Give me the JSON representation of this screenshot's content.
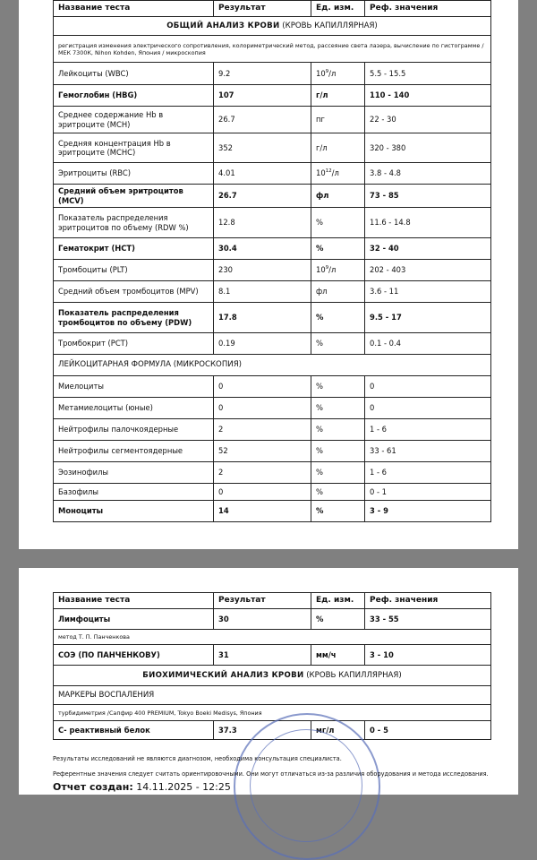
{
  "headers": {
    "name": "Название теста",
    "result": "Результат",
    "unit": "Ед. изм.",
    "ref": "Реф. значения"
  },
  "cbc": {
    "title": "ОБЩИЙ АНАЛИЗ КРОВИ",
    "subtitle": "(КРОВЬ КАПИЛЛЯРНАЯ)",
    "method": "регистрация изменения электрического сопротивления, колориметрический метод, рассеяние света лазера, вычисление по гистограмме / МЕК 7300К, Nihon Kohden, Япония / микроскопия"
  },
  "rows1": [
    {
      "name": "Лейкоциты (WBC)",
      "result": "9.2",
      "unit_base": "10",
      "unit_exp": "9",
      "unit_tail": "/л",
      "ref": "5.5 - 15.5",
      "bold": false
    },
    {
      "name": "Гемоглобин (HBG)",
      "result": "107",
      "unit": "г/л",
      "ref": "110 - 140",
      "bold": true
    },
    {
      "name": "Среднее содержание Hb в эритроците (МСН)",
      "result": "26.7",
      "unit": "пг",
      "ref": "22 - 30",
      "bold": false
    },
    {
      "name": "Средняя концентрация Hb в эритроците (МСНС)",
      "result": "352",
      "unit": "г/л",
      "ref": "320 - 380",
      "bold": false
    },
    {
      "name": "Эритроциты (RBC)",
      "result": "4.01",
      "unit_base": "10",
      "unit_exp": "12",
      "unit_tail": "/л",
      "ref": "3.8 - 4.8",
      "bold": false
    },
    {
      "name": "Средний объем эритроцитов (MCV)",
      "result": "26.7",
      "unit": "фл",
      "ref": "73 - 85",
      "bold": true
    },
    {
      "name": "Показатель распределения эритроцитов по объему (RDW %)",
      "result": "12.8",
      "unit": "%",
      "ref": "11.6 - 14.8",
      "bold": false
    },
    {
      "name": "Гематокрит (НСТ)",
      "result": "30.4",
      "unit": "%",
      "ref": "32 - 40",
      "bold": true
    },
    {
      "name": "Тромбоциты (PLT)",
      "result": "230",
      "unit_base": "10",
      "unit_exp": "9",
      "unit_tail": "/л",
      "ref": "202 - 403",
      "bold": false
    },
    {
      "name": "Средний объем тромбоцитов (MPV)",
      "result": "8.1",
      "unit": "фл",
      "ref": "3.6 - 11",
      "bold": false
    },
    {
      "name": "Показатель распределения тромбоцитов по объему (PDW)",
      "result": "17.8",
      "unit": "%",
      "ref": "9.5 - 17",
      "bold": true
    },
    {
      "name": "Тромбокрит (РСТ)",
      "result": "0.19",
      "unit": "%",
      "ref": "0.1 - 0.4",
      "bold": false
    }
  ],
  "formula_title": "ЛЕЙКОЦИТАРНАЯ ФОРМУЛА (МИКРОСКОПИЯ)",
  "rows2": [
    {
      "name": "Миелоциты",
      "result": "0",
      "unit": "%",
      "ref": "0",
      "bold": false
    },
    {
      "name": "Метамиелоциты (юные)",
      "result": "0",
      "unit": "%",
      "ref": "0",
      "bold": false
    },
    {
      "name": "Нейтрофилы палочкоядерные",
      "result": "2",
      "unit": "%",
      "ref": "1 - 6",
      "bold": false
    },
    {
      "name": "Нейтрофилы сегментоядерные",
      "result": "52",
      "unit": "%",
      "ref": "33 - 61",
      "bold": false
    },
    {
      "name": "Эозинофилы",
      "result": "2",
      "unit": "%",
      "ref": "1 - 6",
      "bold": false
    },
    {
      "name": "Базофилы",
      "result": "0",
      "unit": "%",
      "ref": "0 - 1",
      "bold": false
    },
    {
      "name": "Моноциты",
      "result": "14",
      "unit": "%",
      "ref": "3 - 9",
      "bold": true
    }
  ],
  "page2": {
    "lymph": {
      "name": "Лимфоциты",
      "result": "30",
      "unit": "%",
      "ref": "33 - 55"
    },
    "esr_method": "метод Т. П. Панченкова",
    "esr": {
      "name": "СОЭ (ПО ПАНЧЕНКОВУ)",
      "result": "31",
      "unit": "мм/ч",
      "ref": "3 - 10"
    },
    "bio_title": "БИОХИМИЧЕСКИЙ АНАЛИЗ КРОВИ",
    "bio_subtitle": "(КРОВЬ КАПИЛЛЯРНАЯ)",
    "markers": "МАРКЕРЫ ВОСПАЛЕНИЯ",
    "crp_method": "турбидиметрия /Сапфир 400 PREMIUM, Tokyo Boeki Medisys, Япония",
    "crp": {
      "name": "С- реактивный белок",
      "result": "37.3",
      "unit": "мг/л",
      "ref": "0 - 5"
    },
    "note1": "Результаты исследований не являются диагнозом, необходима консультация специалиста.",
    "note2": "Референтные значения следует считать ориентировочными. Они могут отличаться из-за различия оборудования и метода исследования.",
    "created_label": "Отчет создан:",
    "created_value": "14.11.2025 - 12:25",
    "stamp_text": "ОТВЕТСТВЕННОСТЬЮ ДЕТСКИЙ"
  }
}
